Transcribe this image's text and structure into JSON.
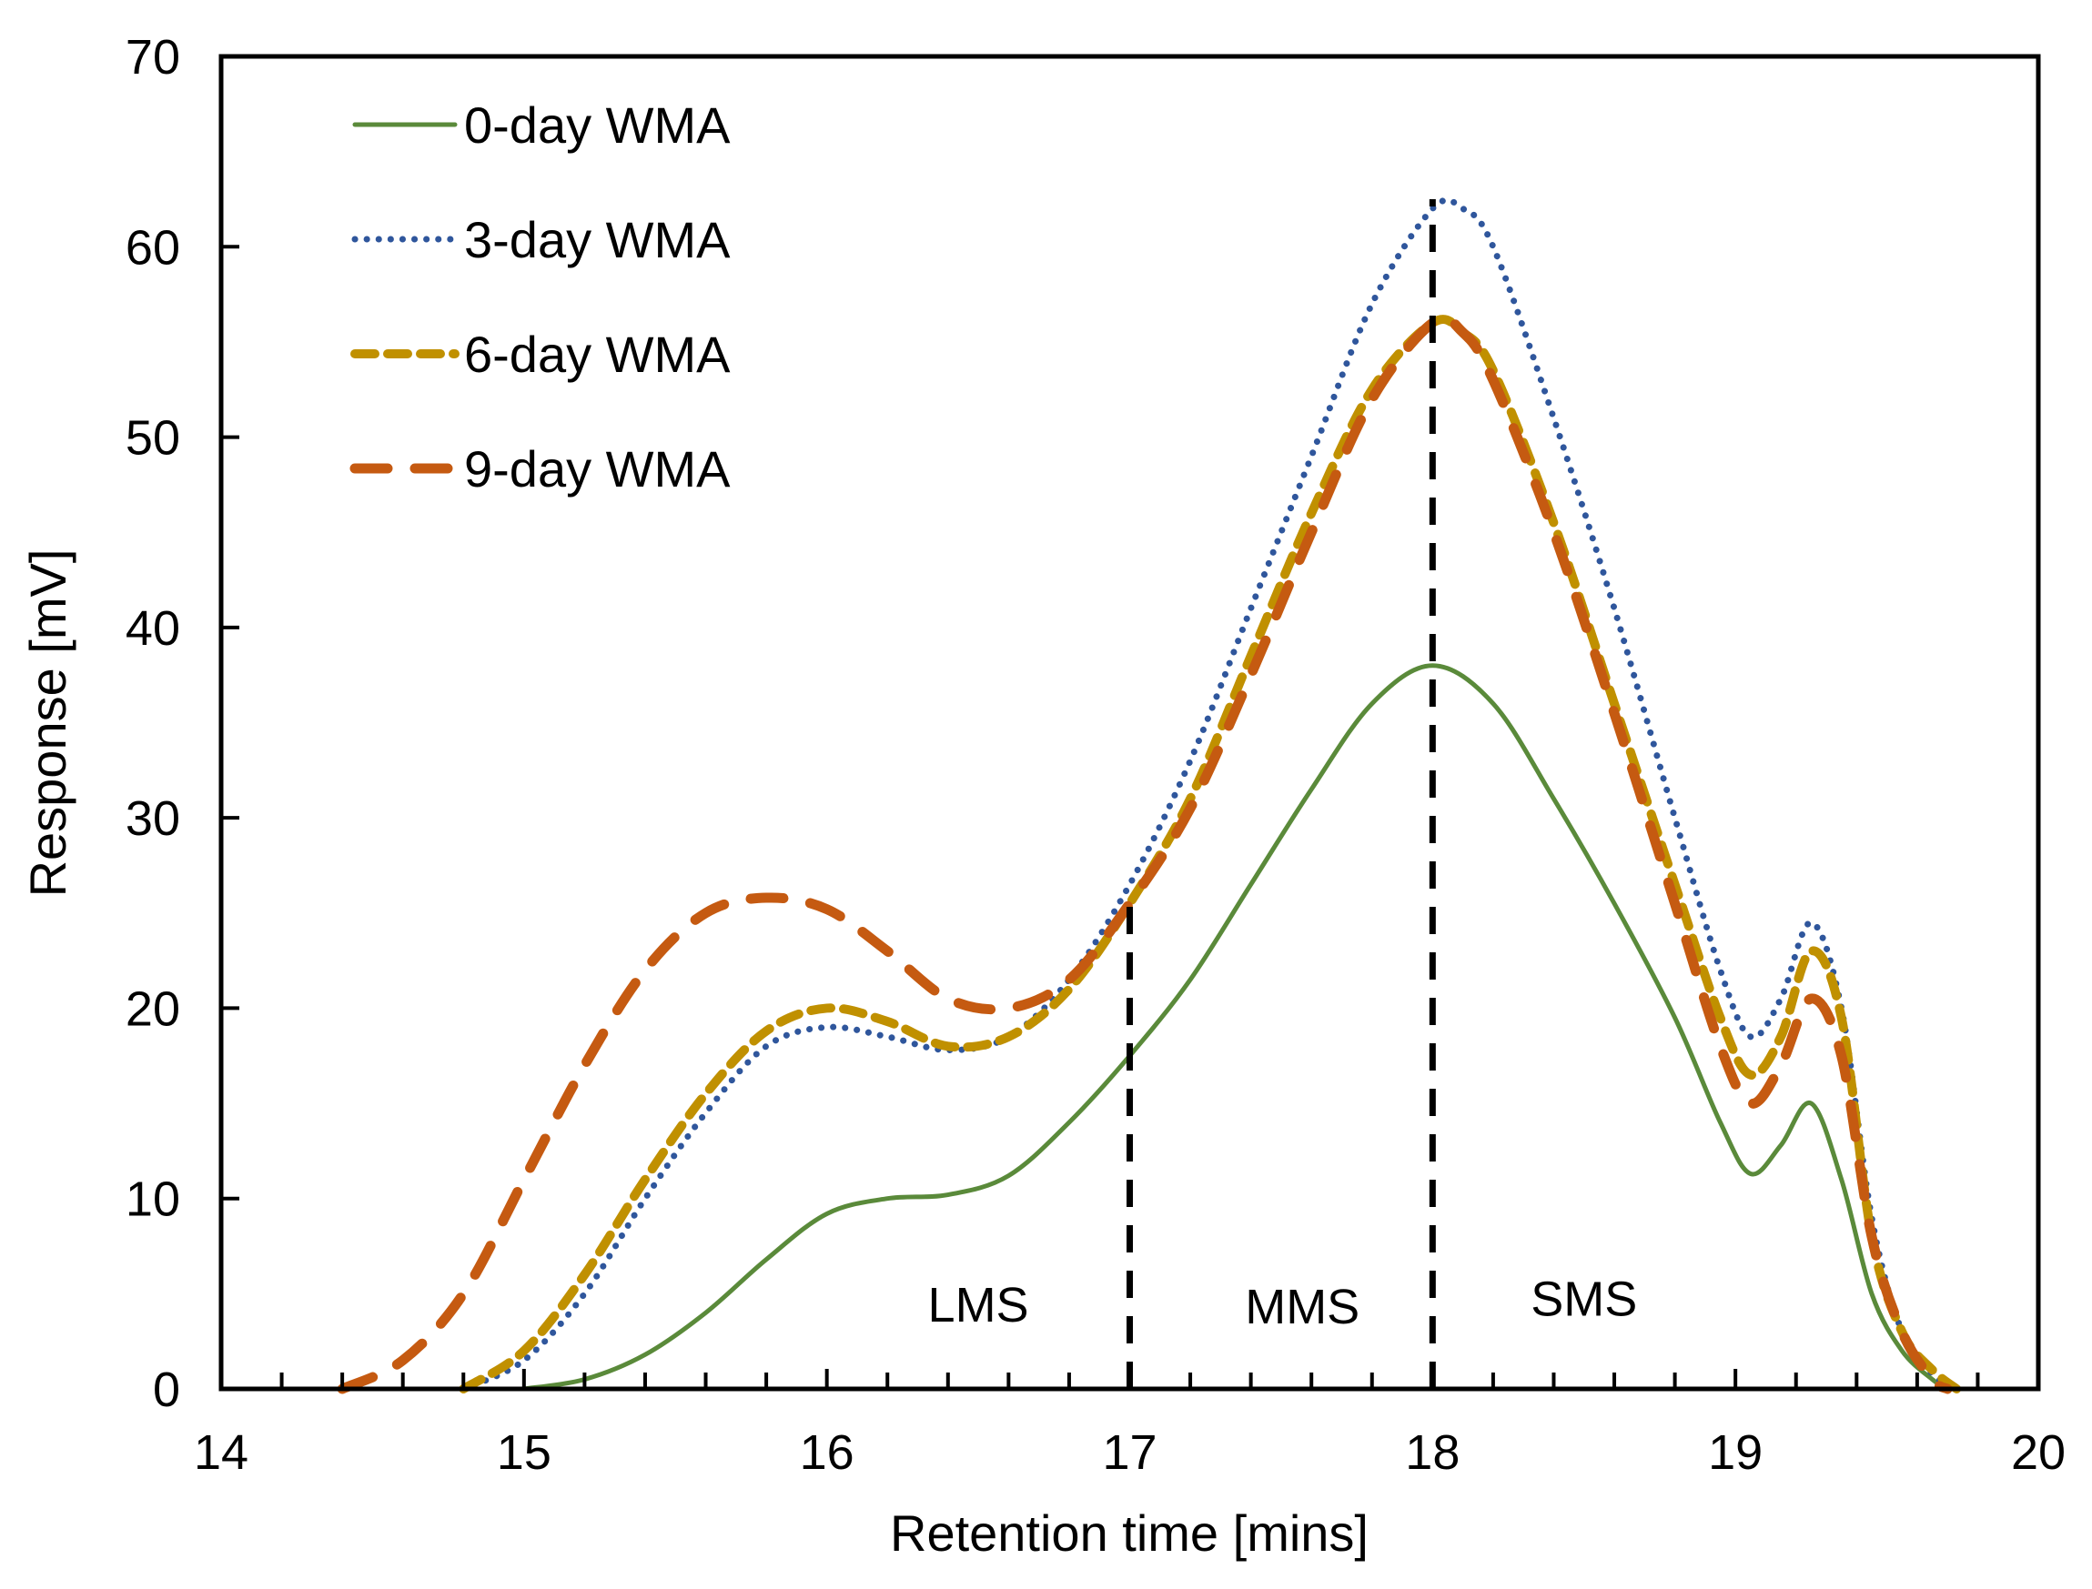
{
  "chart_data": {
    "type": "line",
    "title": "",
    "xlabel": "Retention time [mins]",
    "ylabel": "Response [mV]",
    "xlim": [
      14,
      20
    ],
    "ylim": [
      0,
      70
    ],
    "xticks": [
      14,
      15,
      16,
      17,
      18,
      19,
      20
    ],
    "yticks": [
      0,
      10,
      20,
      30,
      40,
      50,
      60,
      70
    ],
    "grid": false,
    "legend_position": "top-left",
    "series": [
      {
        "name": "0-day WMA",
        "color": "#5a8a3a",
        "style": "solid",
        "x": [
          15.0,
          15.2,
          15.4,
          15.6,
          15.8,
          16.0,
          16.2,
          16.4,
          16.6,
          16.8,
          17.0,
          17.2,
          17.4,
          17.6,
          17.8,
          18.0,
          18.2,
          18.4,
          18.6,
          18.8,
          18.95,
          19.05,
          19.15,
          19.25,
          19.35,
          19.45,
          19.55,
          19.65,
          19.7
        ],
        "y": [
          0,
          0.5,
          1.8,
          4,
          6.8,
          9.2,
          10,
          10.2,
          11.2,
          14,
          17.5,
          21.5,
          26.5,
          31.5,
          36,
          38,
          36,
          31,
          25.5,
          19.5,
          14,
          11.3,
          12.8,
          15,
          11,
          5,
          2,
          0.5,
          0
        ]
      },
      {
        "name": "3-day WMA",
        "color": "#2f569c",
        "style": "dotted",
        "x": [
          14.8,
          15.0,
          15.2,
          15.4,
          15.6,
          15.8,
          16.0,
          16.2,
          16.4,
          16.6,
          16.8,
          17.0,
          17.2,
          17.4,
          17.6,
          17.8,
          18.0,
          18.1,
          18.2,
          18.4,
          18.6,
          18.8,
          18.95,
          19.05,
          19.15,
          19.25,
          19.35,
          19.45,
          19.55,
          19.65,
          19.72
        ],
        "y": [
          0,
          1.5,
          5,
          10,
          14.5,
          18,
          19,
          18.5,
          17.8,
          18.5,
          21.5,
          26.5,
          33,
          41,
          49,
          57,
          62,
          62,
          60,
          51,
          41,
          30,
          22,
          18.5,
          20.5,
          24.5,
          20,
          9,
          3,
          0.8,
          0
        ]
      },
      {
        "name": "6-day WMA",
        "color": "#c09000",
        "style": "dashed",
        "x": [
          14.8,
          15.0,
          15.2,
          15.4,
          15.6,
          15.8,
          16.0,
          16.2,
          16.4,
          16.6,
          16.8,
          17.0,
          17.2,
          17.4,
          17.6,
          17.8,
          18.0,
          18.1,
          18.2,
          18.4,
          18.6,
          18.8,
          18.95,
          19.05,
          19.15,
          19.25,
          19.35,
          19.45,
          19.55,
          19.65,
          19.73
        ],
        "y": [
          0,
          2,
          6,
          11,
          15.5,
          18.8,
          20,
          19.3,
          18,
          18.5,
          21,
          25.5,
          31,
          38.5,
          46,
          52.5,
          56,
          55.5,
          53.5,
          45.5,
          36,
          26.5,
          19.5,
          16.5,
          18.5,
          23,
          19.5,
          8,
          3,
          1,
          0
        ]
      },
      {
        "name": "9-day WMA",
        "color": "#c55a11",
        "style": "longdash",
        "x": [
          14.4,
          14.6,
          14.8,
          15.0,
          15.2,
          15.4,
          15.6,
          15.8,
          16.0,
          16.2,
          16.4,
          16.6,
          16.8,
          17.0,
          17.2,
          17.4,
          17.6,
          17.8,
          18.0,
          18.1,
          18.2,
          18.4,
          18.6,
          18.8,
          18.95,
          19.05,
          19.15,
          19.25,
          19.35,
          19.45,
          19.55,
          19.65,
          19.7
        ],
        "y": [
          0,
          1.5,
          5,
          11,
          17,
          22,
          25,
          25.8,
          25.2,
          23,
          20.5,
          20,
          21.5,
          25.5,
          30.5,
          37.5,
          45,
          52,
          56,
          55.5,
          53,
          45,
          35.5,
          25.5,
          18,
          15,
          17,
          20.5,
          17.5,
          8,
          3,
          0.5,
          0
        ]
      }
    ],
    "vlines": [
      {
        "x": 17,
        "ymax": 26
      },
      {
        "x": 18,
        "ymax": 62.5
      }
    ],
    "annotations": [
      {
        "text": "LMS",
        "x": 16.5,
        "y": 4.5
      },
      {
        "text": "MMS",
        "x": 17.57,
        "y": 4.4
      },
      {
        "text": "SMS",
        "x": 18.5,
        "y": 4.8
      }
    ]
  }
}
